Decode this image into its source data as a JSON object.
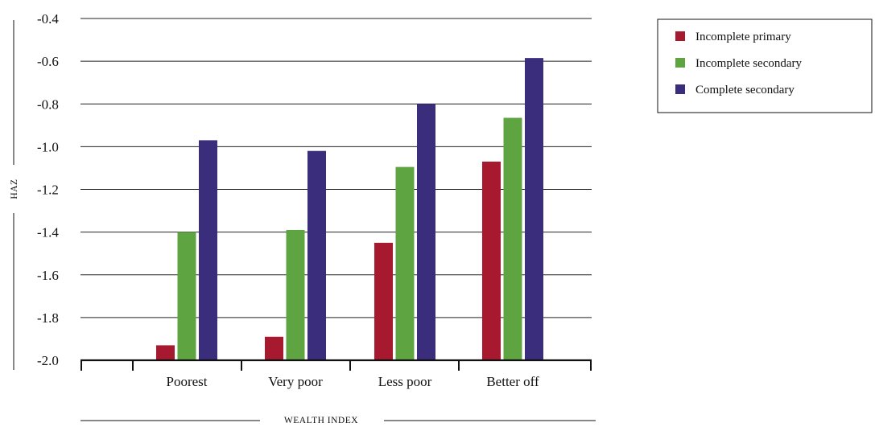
{
  "chart_data": {
    "type": "bar",
    "categories": [
      "Poorest",
      "Very poor",
      "Less poor",
      "Better off"
    ],
    "series": [
      {
        "name": "Incomplete primary",
        "color": "#a6192e",
        "values": [
          -1.93,
          -1.89,
          -1.45,
          -1.07
        ]
      },
      {
        "name": "Incomplete secondary",
        "color": "#5ea542",
        "values": [
          -1.4,
          -1.39,
          -1.095,
          -0.865
        ]
      },
      {
        "name": "Complete secondary",
        "color": "#3a2d7c",
        "values": [
          -0.97,
          -1.02,
          -0.8,
          -0.585
        ]
      }
    ],
    "xlabel": "WEALTH INDEX",
    "ylabel": "HAZ",
    "ylim": [
      -2.0,
      -0.4
    ],
    "yticks": [
      "-0.4",
      "-0.6",
      "-0.8",
      "-1.0",
      "-1.2",
      "-1.4",
      "-1.6",
      "-1.8",
      "-2.0"
    ],
    "grid": true,
    "legend_position": "top-right"
  }
}
